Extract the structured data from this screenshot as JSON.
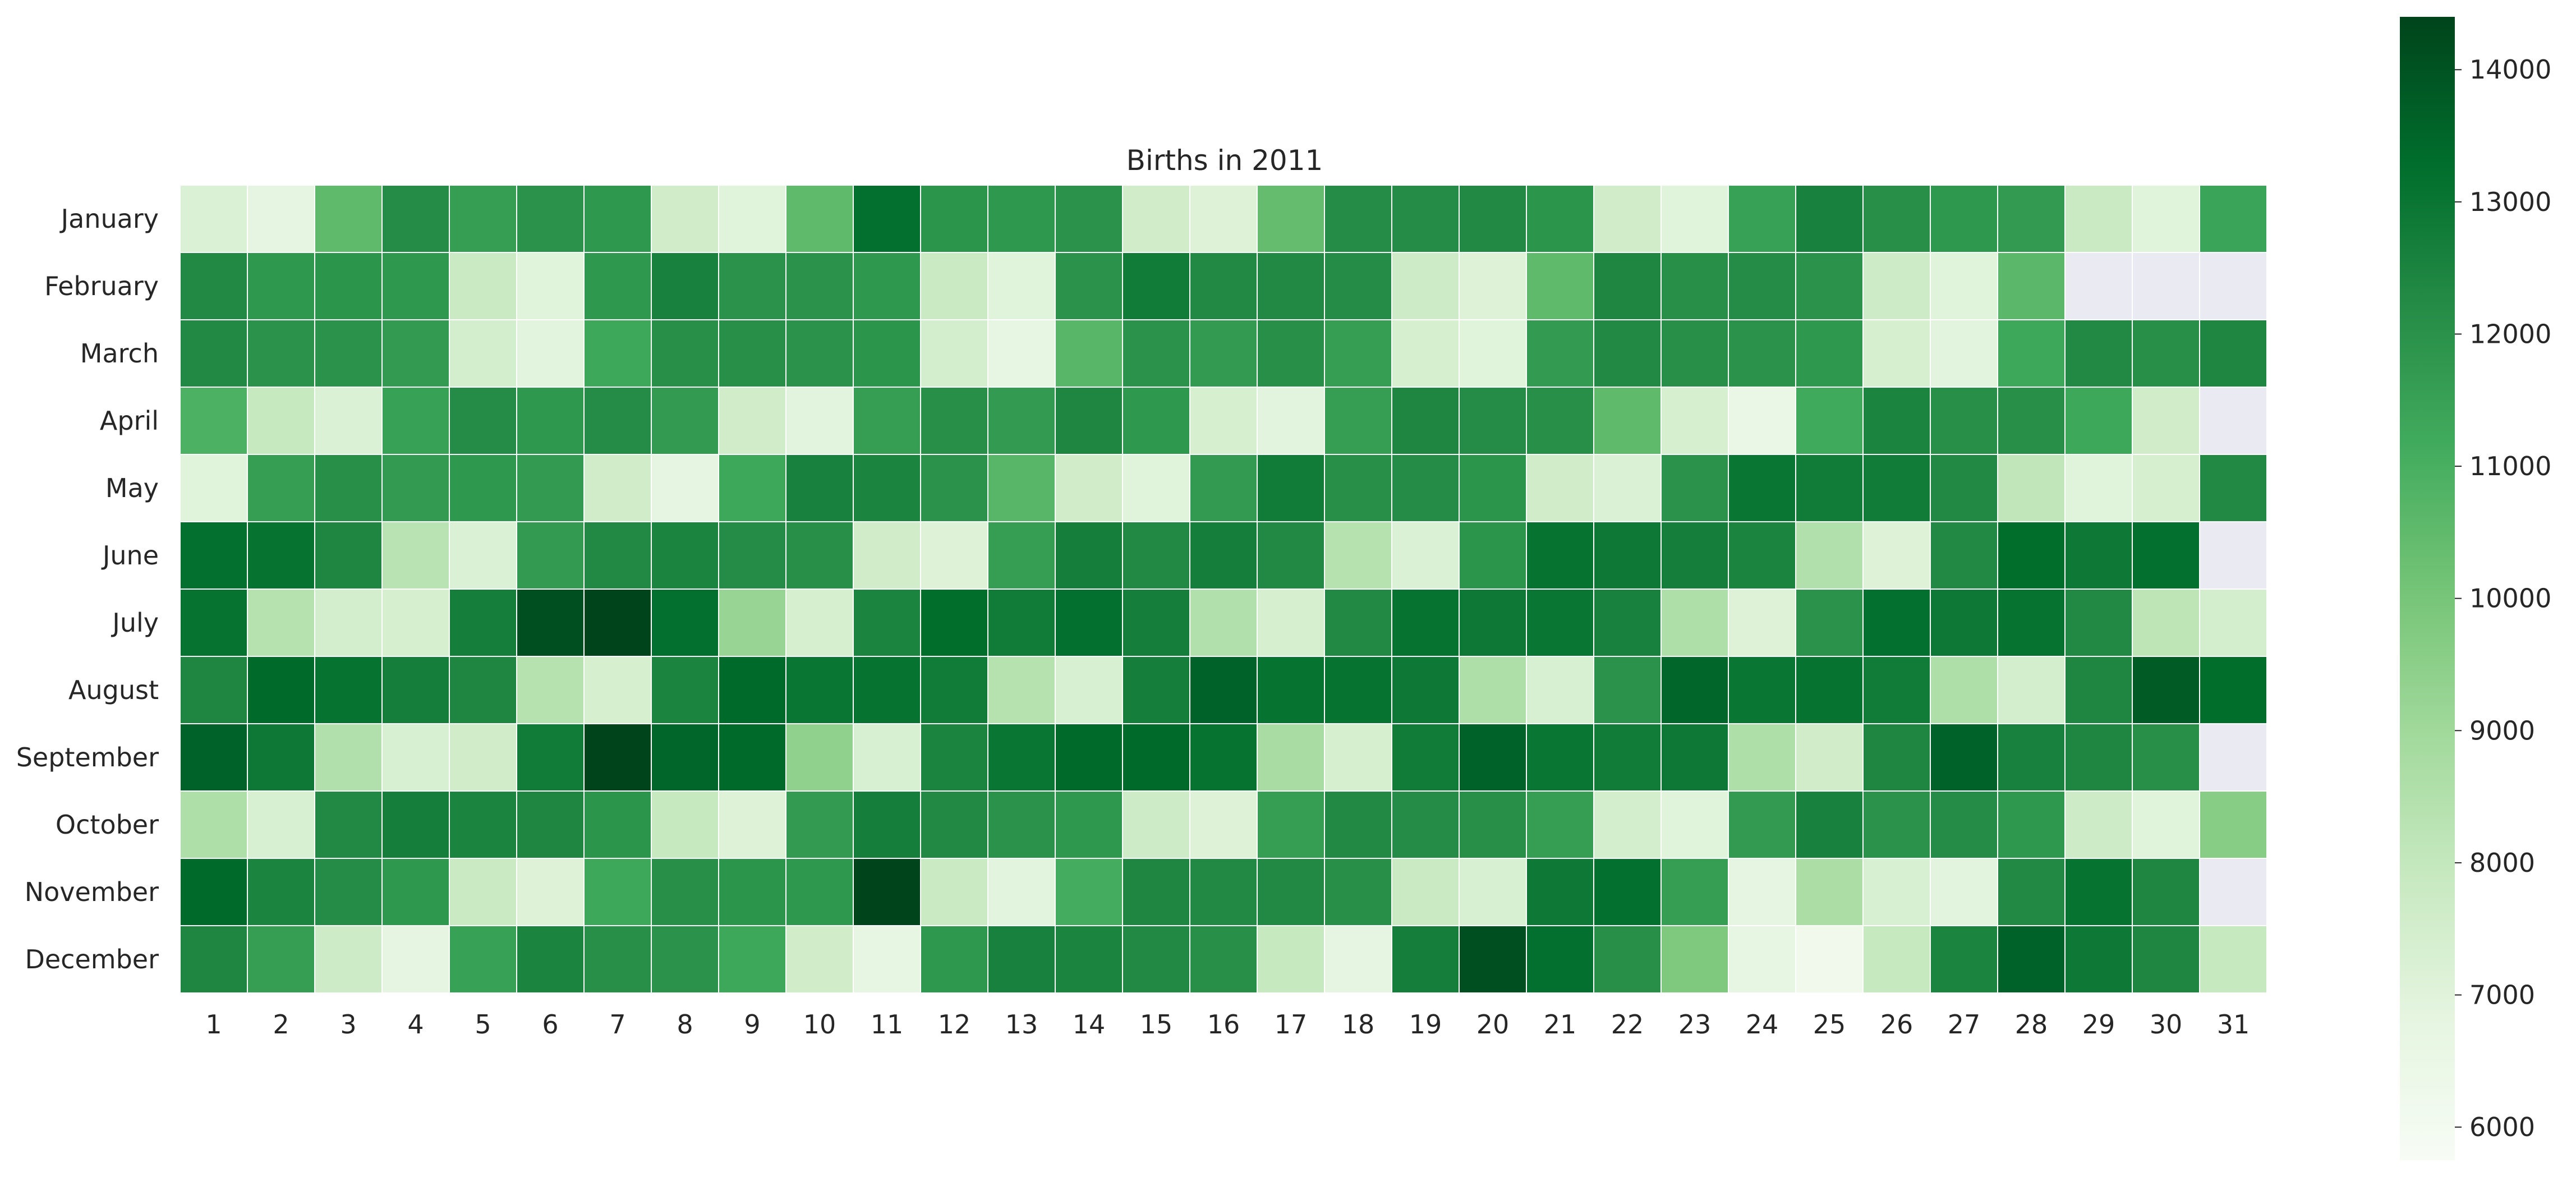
{
  "chart_data": {
    "type": "heatmap",
    "title": "Births in 2011",
    "xlabel": "",
    "ylabel": "",
    "colormap": "Greens",
    "missing_color": "#eaeaf2",
    "cell_border_color": "#ffffff",
    "x_labels": [
      "1",
      "2",
      "3",
      "4",
      "5",
      "6",
      "7",
      "8",
      "9",
      "10",
      "11",
      "12",
      "13",
      "14",
      "15",
      "16",
      "17",
      "18",
      "19",
      "20",
      "21",
      "22",
      "23",
      "24",
      "25",
      "26",
      "27",
      "28",
      "29",
      "30",
      "31"
    ],
    "y_labels": [
      "January",
      "February",
      "March",
      "April",
      "May",
      "June",
      "July",
      "August",
      "September",
      "October",
      "November",
      "December"
    ],
    "values": [
      [
        7200,
        6800,
        10500,
        12200,
        11600,
        12000,
        11800,
        7600,
        7000,
        10500,
        13200,
        11900,
        11800,
        12000,
        7600,
        7100,
        10400,
        12200,
        12200,
        12300,
        11900,
        7600,
        7000,
        11500,
        12600,
        12100,
        11800,
        11700,
        7800,
        7000,
        11400
      ],
      [
        12300,
        11800,
        11900,
        11800,
        7800,
        7000,
        11800,
        12600,
        12000,
        12000,
        11800,
        7800,
        7000,
        12000,
        12800,
        12300,
        12300,
        12200,
        7700,
        7100,
        10500,
        12400,
        12100,
        12200,
        12000,
        7700,
        7000,
        10600,
        null,
        null,
        null
      ],
      [
        12300,
        12000,
        12000,
        11700,
        7500,
        6900,
        11300,
        12100,
        12100,
        12000,
        11900,
        7500,
        6700,
        10700,
        12000,
        11700,
        12100,
        11600,
        7400,
        7000,
        11700,
        12300,
        12100,
        12000,
        11800,
        7400,
        6900,
        11300,
        12300,
        12100,
        12400
      ],
      [
        10900,
        7900,
        7200,
        11500,
        12200,
        11800,
        12200,
        11700,
        7600,
        6900,
        11600,
        12100,
        11700,
        12400,
        11800,
        7400,
        6900,
        11600,
        12400,
        12200,
        12100,
        10500,
        7400,
        6500,
        11200,
        12500,
        12100,
        12100,
        11300,
        7600,
        null
      ],
      [
        7000,
        11600,
        12100,
        11700,
        11800,
        11700,
        7600,
        6800,
        11300,
        12600,
        12500,
        12000,
        10700,
        7600,
        7000,
        11700,
        12800,
        12100,
        12200,
        11900,
        7600,
        7200,
        12000,
        13000,
        12800,
        12800,
        12300,
        8100,
        7000,
        7400,
        12300
      ],
      [
        13200,
        13100,
        12400,
        8300,
        7200,
        11700,
        12300,
        12500,
        12200,
        12100,
        7600,
        7100,
        11600,
        12700,
        12300,
        12700,
        12300,
        8400,
        7200,
        11900,
        13100,
        12900,
        12700,
        12500,
        8500,
        7100,
        12300,
        13300,
        12900,
        13200,
        null
      ],
      [
        13100,
        8400,
        7500,
        7400,
        12700,
        14100,
        14400,
        13200,
        9200,
        7400,
        12500,
        13300,
        12800,
        13200,
        12700,
        8500,
        7400,
        12300,
        13100,
        12900,
        13000,
        12600,
        8600,
        7100,
        12000,
        13200,
        12900,
        13100,
        12300,
        8200,
        7500
      ],
      [
        12400,
        13400,
        13100,
        12700,
        12400,
        8400,
        7400,
        12500,
        13400,
        13000,
        13100,
        12800,
        8400,
        7300,
        12700,
        13600,
        13100,
        13100,
        12900,
        8600,
        7300,
        12000,
        13500,
        13000,
        13100,
        12800,
        8600,
        7500,
        12400,
        13800,
        13300
      ],
      [
        13600,
        12900,
        8500,
        7300,
        7600,
        12800,
        14500,
        13500,
        13400,
        9400,
        7300,
        12500,
        13000,
        13400,
        13400,
        13100,
        8800,
        7400,
        12800,
        13600,
        13000,
        12800,
        12900,
        8600,
        7600,
        12400,
        13600,
        12600,
        12400,
        12100,
        null
      ],
      [
        8600,
        7300,
        12300,
        12700,
        12500,
        12400,
        11900,
        7900,
        7100,
        11700,
        12700,
        12300,
        12000,
        11800,
        7700,
        7100,
        11600,
        12300,
        12200,
        12100,
        11600,
        7500,
        7000,
        11700,
        12600,
        12000,
        12200,
        11800,
        7700,
        7000,
        9600
      ],
      [
        13400,
        12500,
        12200,
        11800,
        7800,
        7100,
        11300,
        12100,
        11900,
        11800,
        14700,
        7800,
        6900,
        11100,
        12400,
        12300,
        12300,
        12100,
        7800,
        7300,
        12900,
        13200,
        11600,
        6800,
        8700,
        7300,
        6900,
        12300,
        13100,
        12400,
        null
      ],
      [
        12400,
        11600,
        7700,
        6800,
        11500,
        12500,
        12100,
        12000,
        11300,
        7600,
        6700,
        11800,
        12600,
        12500,
        12300,
        12100,
        7900,
        6800,
        12700,
        14100,
        13200,
        12100,
        9800,
        6700,
        6200,
        7900,
        12500,
        13600,
        12900,
        12400,
        7900
      ]
    ],
    "colorbar": {
      "min": 5750,
      "max": 14400,
      "ticks": [
        6000,
        7000,
        8000,
        9000,
        10000,
        11000,
        12000,
        13000,
        14000
      ]
    }
  }
}
